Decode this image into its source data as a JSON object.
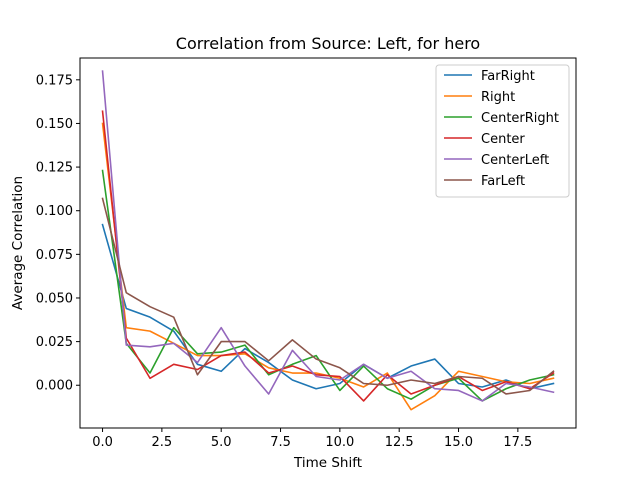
{
  "chart_data": {
    "type": "line",
    "title": "Correlation from Source: Left, for hero",
    "xlabel": "Time Shift",
    "ylabel": "Average Correlation",
    "xlim": [
      -0.95,
      19.95
    ],
    "ylim": [
      -0.0245,
      0.1875
    ],
    "xticks": [
      0,
      2.5,
      5,
      7.5,
      10,
      12.5,
      15,
      17.5
    ],
    "xtick_labels": [
      "0.0",
      "2.5",
      "5.0",
      "7.5",
      "10.0",
      "12.5",
      "15.0",
      "17.5"
    ],
    "yticks": [
      0,
      0.025,
      0.05,
      0.075,
      0.1,
      0.125,
      0.15,
      0.175
    ],
    "ytick_labels": [
      "0.000",
      "0.025",
      "0.050",
      "0.075",
      "0.100",
      "0.125",
      "0.150",
      "0.175"
    ],
    "grid": false,
    "legend_position": "top-right",
    "x": [
      0,
      1,
      2,
      3,
      4,
      5,
      6,
      7,
      8,
      9,
      10,
      11,
      12,
      13,
      14,
      15,
      16,
      17,
      18,
      19
    ],
    "series": [
      {
        "name": "FarRight",
        "color": "#1f77b4",
        "values": [
          0.092,
          0.044,
          0.039,
          0.031,
          0.012,
          0.008,
          0.021,
          0.013,
          0.003,
          -0.002,
          0.001,
          0.012,
          0.004,
          0.011,
          0.015,
          0.001,
          -0.001,
          0.003,
          -0.002,
          0.001
        ]
      },
      {
        "name": "Right",
        "color": "#ff7f0e",
        "values": [
          0.15,
          0.033,
          0.031,
          0.024,
          0.017,
          0.017,
          0.018,
          0.01,
          0.007,
          0.007,
          0.004,
          -0.001,
          0.007,
          -0.014,
          -0.006,
          0.008,
          0.005,
          0.002,
          0.001,
          0.004
        ]
      },
      {
        "name": "CenterRight",
        "color": "#2ca02c",
        "values": [
          0.123,
          0.024,
          0.007,
          0.033,
          0.018,
          0.019,
          0.023,
          0.006,
          0.012,
          0.017,
          -0.003,
          0.011,
          -0.002,
          -0.008,
          0.0,
          0.004,
          -0.009,
          -0.002,
          0.003,
          0.006
        ]
      },
      {
        "name": "Center",
        "color": "#d62728",
        "values": [
          0.157,
          0.027,
          0.004,
          0.012,
          0.009,
          0.017,
          0.019,
          0.007,
          0.011,
          0.006,
          0.005,
          -0.009,
          0.006,
          -0.005,
          0.0,
          0.005,
          -0.003,
          0.002,
          -0.002,
          0.007
        ]
      },
      {
        "name": "CenterLeft",
        "color": "#9467bd",
        "values": [
          0.18,
          0.023,
          0.022,
          0.024,
          0.013,
          0.033,
          0.011,
          -0.005,
          0.02,
          0.005,
          0.003,
          0.012,
          0.004,
          0.008,
          -0.002,
          -0.003,
          -0.009,
          0.001,
          -0.001,
          -0.004
        ]
      },
      {
        "name": "FarLeft",
        "color": "#8c564b",
        "values": [
          0.107,
          0.053,
          0.045,
          0.039,
          0.006,
          0.025,
          0.025,
          0.014,
          0.026,
          0.015,
          0.01,
          0.001,
          0.0,
          0.003,
          0.001,
          0.005,
          0.004,
          -0.005,
          -0.003,
          0.008
        ]
      }
    ]
  }
}
